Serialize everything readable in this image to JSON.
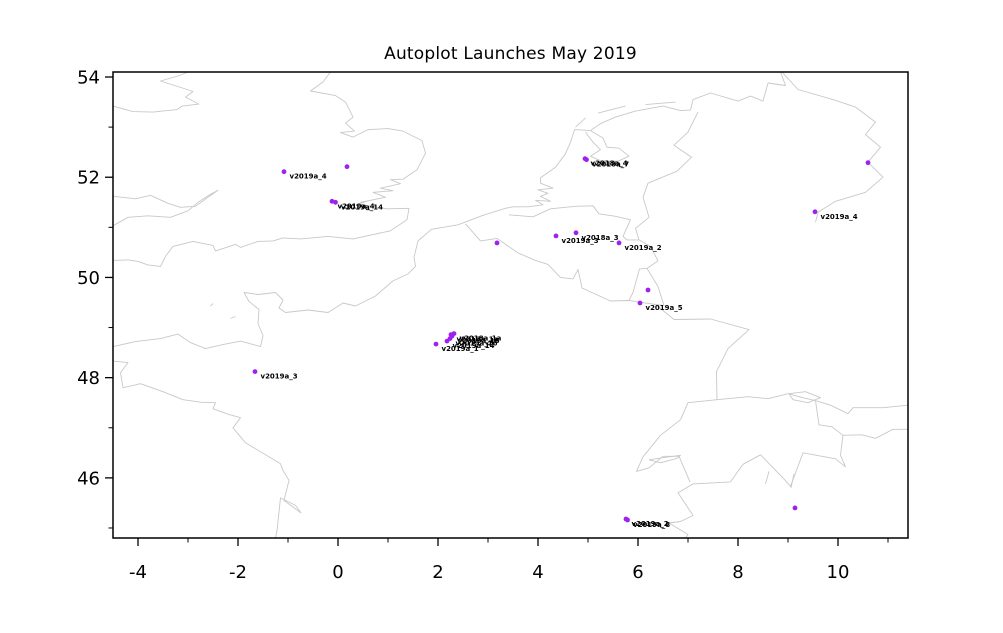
{
  "title": "Autoplot Launches May 2019",
  "style": {
    "marker_color": "#a020f0",
    "map_line_color": "#c8c8c8",
    "axis_color": "#000000",
    "background": "#ffffff",
    "label_color": "#000000"
  },
  "axes": {
    "x": {
      "min": -4.5,
      "max": 11.4,
      "major_ticks": [
        -4,
        -2,
        0,
        2,
        4,
        6,
        8,
        10
      ],
      "minor_ticks": [
        -3,
        -1,
        1,
        3,
        5,
        7,
        9,
        11
      ]
    },
    "y": {
      "min": 44.8,
      "max": 54.1,
      "major_ticks": [
        54,
        52,
        50,
        48,
        46
      ],
      "minor_ticks": [
        53,
        51,
        49,
        47,
        45
      ]
    }
  },
  "chart_data": {
    "type": "scatter",
    "title": "Autoplot Launches May 2019",
    "xlabel": "",
    "ylabel": "",
    "xlim": [
      -4.5,
      11.4
    ],
    "ylim": [
      44.8,
      54.1
    ],
    "grid": false,
    "legend": false,
    "points": [
      {
        "lon": -1.08,
        "lat": 52.11,
        "label": "v2019a_4"
      },
      {
        "lon": 0.18,
        "lat": 52.21,
        "label": null
      },
      {
        "lon": -0.12,
        "lat": 51.52,
        "label": "v2019a_4"
      },
      {
        "lon": -0.05,
        "lat": 51.5,
        "label": "v2019a_14"
      },
      {
        "lon": 4.94,
        "lat": 52.37,
        "label": "v2018a_4"
      },
      {
        "lon": 4.97,
        "lat": 52.35,
        "label": "v2018a_7"
      },
      {
        "lon": 3.18,
        "lat": 50.69,
        "label": null
      },
      {
        "lon": 4.36,
        "lat": 50.83,
        "label": "v2019a_3"
      },
      {
        "lon": 4.76,
        "lat": 50.89,
        "label": "v2018a_3"
      },
      {
        "lon": 5.62,
        "lat": 50.69,
        "label": "v2019a_2"
      },
      {
        "lon": 6.2,
        "lat": 49.75,
        "label": null
      },
      {
        "lon": 6.04,
        "lat": 49.49,
        "label": "v2019a_5"
      },
      {
        "lon": 1.96,
        "lat": 48.67,
        "label": "v2019a_1"
      },
      {
        "lon": 2.18,
        "lat": 48.73,
        "label": "v2019a_14"
      },
      {
        "lon": 2.24,
        "lat": 48.78,
        "label": "v2019a_16"
      },
      {
        "lon": 2.28,
        "lat": 48.83,
        "label": "v2019a_18"
      },
      {
        "lon": 2.26,
        "lat": 48.86,
        "label": "v2019a_1a"
      },
      {
        "lon": 2.32,
        "lat": 48.88,
        "label": "v2018a_1a"
      },
      {
        "lon": -1.66,
        "lat": 48.12,
        "label": "v2019a_3"
      },
      {
        "lon": 9.54,
        "lat": 51.31,
        "label": "v2019a_4"
      },
      {
        "lon": 10.6,
        "lat": 52.29,
        "label": null
      },
      {
        "lon": 5.76,
        "lat": 45.18,
        "label": "v2019a_2"
      },
      {
        "lon": 5.79,
        "lat": 45.16,
        "label": "v2019a_8"
      },
      {
        "lon": 9.14,
        "lat": 45.4,
        "label": null
      }
    ]
  },
  "map_paths": [
    [
      [
        -0.15,
        54.1
      ],
      [
        -0.3,
        53.9
      ],
      [
        -0.55,
        53.72
      ],
      [
        -0.05,
        53.63
      ],
      [
        0.15,
        53.5
      ],
      [
        0.3,
        53.2
      ],
      [
        0.15,
        53.08
      ],
      [
        0.33,
        52.92
      ],
      [
        0.05,
        52.89
      ],
      [
        0.3,
        52.8
      ],
      [
        0.6,
        52.95
      ],
      [
        1.0,
        52.97
      ],
      [
        1.3,
        52.92
      ],
      [
        1.68,
        52.73
      ],
      [
        1.75,
        52.48
      ],
      [
        1.58,
        52.15
      ],
      [
        1.3,
        51.96
      ],
      [
        1.05,
        51.95
      ],
      [
        1.25,
        51.87
      ],
      [
        0.85,
        51.78
      ],
      [
        1.1,
        51.73
      ],
      [
        0.7,
        51.7
      ],
      [
        0.95,
        51.6
      ],
      [
        0.45,
        51.5
      ],
      [
        0.6,
        51.53
      ],
      [
        0.4,
        51.46
      ],
      [
        0.98,
        51.37
      ],
      [
        1.42,
        51.38
      ],
      [
        1.38,
        51.15
      ],
      [
        1.05,
        50.93
      ],
      [
        0.3,
        50.77
      ],
      [
        -0.2,
        50.82
      ],
      [
        -0.75,
        50.77
      ],
      [
        -1.1,
        50.79
      ],
      [
        -1.3,
        50.73
      ],
      [
        -1.6,
        50.72
      ],
      [
        -1.95,
        50.6
      ],
      [
        -2.05,
        50.66
      ],
      [
        -2.45,
        50.53
      ],
      [
        -2.5,
        50.64
      ],
      [
        -2.9,
        50.72
      ],
      [
        -3.3,
        50.62
      ],
      [
        -3.45,
        50.42
      ],
      [
        -3.55,
        50.22
      ],
      [
        -3.8,
        50.25
      ],
      [
        -4.0,
        50.32
      ],
      [
        -4.2,
        50.35
      ],
      [
        -4.5,
        50.34
      ]
    ],
    [
      [
        -4.5,
        51.62
      ],
      [
        -4.05,
        51.57
      ],
      [
        -3.75,
        51.64
      ],
      [
        -3.4,
        51.48
      ],
      [
        -3.15,
        51.4
      ],
      [
        -2.85,
        51.42
      ],
      [
        -2.6,
        51.6
      ],
      [
        -2.4,
        51.74
      ],
      [
        -2.55,
        51.66
      ],
      [
        -2.8,
        51.5
      ],
      [
        -3.0,
        51.33
      ],
      [
        -3.35,
        51.2
      ],
      [
        -3.8,
        51.23
      ],
      [
        -4.2,
        51.2
      ],
      [
        -4.5,
        51.03
      ]
    ],
    [
      [
        -3.0,
        54.1
      ],
      [
        -3.2,
        54.02
      ],
      [
        -3.55,
        53.92
      ],
      [
        -3.05,
        53.76
      ],
      [
        -2.9,
        53.71
      ],
      [
        -3.05,
        53.6
      ],
      [
        -2.78,
        53.46
      ],
      [
        -3.12,
        53.42
      ],
      [
        -3.22,
        53.35
      ],
      [
        -3.7,
        53.3
      ],
      [
        -4.1,
        53.31
      ],
      [
        -4.5,
        53.42
      ]
    ],
    [
      [
        -4.5,
        48.62
      ],
      [
        -4.05,
        48.72
      ],
      [
        -3.55,
        48.78
      ],
      [
        -3.2,
        48.87
      ],
      [
        -2.95,
        48.7
      ],
      [
        -2.65,
        48.58
      ],
      [
        -2.3,
        48.66
      ],
      [
        -1.95,
        48.73
      ],
      [
        -1.55,
        48.62
      ],
      [
        -1.5,
        48.84
      ],
      [
        -1.6,
        49.08
      ],
      [
        -1.58,
        49.36
      ],
      [
        -1.78,
        49.52
      ],
      [
        -1.88,
        49.7
      ],
      [
        -1.6,
        49.66
      ],
      [
        -1.25,
        49.7
      ],
      [
        -1.1,
        49.55
      ],
      [
        -1.18,
        49.39
      ],
      [
        -1.05,
        49.3
      ],
      [
        -0.6,
        49.35
      ],
      [
        -0.2,
        49.3
      ],
      [
        0.1,
        49.49
      ],
      [
        0.35,
        49.43
      ],
      [
        0.75,
        49.63
      ],
      [
        1.1,
        49.93
      ],
      [
        1.4,
        50.07
      ],
      [
        1.55,
        50.22
      ],
      [
        1.52,
        50.4
      ],
      [
        1.6,
        50.73
      ],
      [
        1.87,
        50.96
      ],
      [
        2.4,
        51.05
      ],
      [
        2.9,
        51.24
      ],
      [
        3.35,
        51.38
      ],
      [
        3.5,
        51.41
      ],
      [
        3.8,
        51.41
      ],
      [
        4.1,
        51.45
      ],
      [
        3.95,
        51.54
      ],
      [
        4.25,
        51.52
      ],
      [
        4.05,
        51.62
      ],
      [
        4.2,
        51.68
      ],
      [
        4.0,
        51.75
      ],
      [
        4.3,
        51.78
      ],
      [
        4.05,
        51.88
      ],
      [
        4.05,
        51.99
      ],
      [
        4.35,
        52.2
      ],
      [
        4.55,
        52.47
      ],
      [
        4.65,
        52.7
      ],
      [
        4.73,
        52.95
      ],
      [
        5.05,
        52.93
      ],
      [
        5.25,
        53.07
      ],
      [
        5.55,
        53.2
      ],
      [
        5.95,
        53.32
      ],
      [
        6.5,
        53.42
      ],
      [
        6.85,
        53.33
      ],
      [
        7.05,
        53.34
      ],
      [
        7.1,
        53.55
      ],
      [
        7.45,
        53.68
      ],
      [
        8.0,
        53.52
      ],
      [
        8.25,
        53.62
      ],
      [
        8.5,
        53.52
      ],
      [
        8.6,
        53.88
      ],
      [
        8.95,
        53.83
      ],
      [
        8.85,
        54.1
      ]
    ],
    [
      [
        -4.5,
        48.33
      ],
      [
        -4.2,
        48.3
      ],
      [
        -4.35,
        48.1
      ],
      [
        -4.3,
        47.8
      ],
      [
        -3.95,
        47.88
      ],
      [
        -3.5,
        47.72
      ],
      [
        -3.1,
        47.56
      ],
      [
        -2.75,
        47.51
      ],
      [
        -2.45,
        47.5
      ],
      [
        -2.5,
        47.38
      ],
      [
        -2.2,
        47.27
      ],
      [
        -1.95,
        47.2
      ],
      [
        -2.1,
        47.0
      ],
      [
        -1.85,
        46.7
      ],
      [
        -1.15,
        46.28
      ],
      [
        -1.1,
        46.15
      ],
      [
        -0.98,
        45.95
      ],
      [
        -1.08,
        45.55
      ],
      [
        -0.74,
        45.3
      ],
      [
        -0.85,
        45.45
      ],
      [
        -1.15,
        45.6
      ],
      [
        -1.22,
        44.95
      ],
      [
        -1.25,
        44.8
      ]
    ],
    [
      [
        2.55,
        51.07
      ],
      [
        2.85,
        50.73
      ],
      [
        3.18,
        50.78
      ],
      [
        3.6,
        50.49
      ],
      [
        3.95,
        50.34
      ],
      [
        4.2,
        50.26
      ],
      [
        4.45,
        50.0
      ],
      [
        4.7,
        49.97
      ],
      [
        4.8,
        50.16
      ],
      [
        4.88,
        49.79
      ],
      [
        5.45,
        49.53
      ],
      [
        5.82,
        49.54
      ],
      [
        6.35,
        49.46
      ],
      [
        6.72,
        49.16
      ],
      [
        7.45,
        49.17
      ],
      [
        8.22,
        48.96
      ],
      [
        7.8,
        48.58
      ],
      [
        7.57,
        48.12
      ],
      [
        7.58,
        47.56
      ]
    ],
    [
      [
        3.42,
        51.25
      ],
      [
        3.9,
        51.21
      ],
      [
        4.25,
        51.37
      ],
      [
        4.75,
        51.42
      ],
      [
        5.1,
        51.43
      ],
      [
        5.22,
        51.27
      ],
      [
        5.55,
        51.22
      ],
      [
        5.85,
        51.15
      ],
      [
        5.7,
        50.82
      ],
      [
        5.78,
        50.75
      ],
      [
        6.02,
        50.75
      ],
      [
        6.25,
        50.62
      ],
      [
        6.4,
        50.33
      ],
      [
        6.18,
        50.18
      ],
      [
        6.4,
        49.82
      ],
      [
        6.52,
        49.44
      ],
      [
        6.35,
        49.46
      ]
    ],
    [
      [
        5.82,
        49.54
      ],
      [
        5.9,
        49.7
      ],
      [
        6.03,
        50.17
      ],
      [
        6.18,
        50.18
      ]
    ],
    [
      [
        7.2,
        53.3
      ],
      [
        7.0,
        52.9
      ],
      [
        6.72,
        52.64
      ],
      [
        7.07,
        52.4
      ],
      [
        6.78,
        52.12
      ],
      [
        6.2,
        51.88
      ],
      [
        6.1,
        51.6
      ],
      [
        6.22,
        51.2
      ],
      [
        5.95,
        50.98
      ],
      [
        6.02,
        50.75
      ]
    ],
    [
      [
        7.58,
        47.56
      ],
      [
        8.2,
        47.62
      ],
      [
        8.6,
        47.58
      ],
      [
        9.0,
        47.68
      ],
      [
        9.3,
        47.6
      ],
      [
        9.55,
        47.54
      ],
      [
        9.62,
        47.06
      ],
      [
        9.88,
        47.02
      ],
      [
        10.1,
        46.85
      ],
      [
        10.05,
        46.45
      ],
      [
        10.15,
        46.22
      ],
      [
        9.95,
        46.38
      ],
      [
        9.3,
        46.5
      ],
      [
        9.05,
        45.83
      ],
      [
        8.9,
        46.0
      ],
      [
        8.45,
        46.46
      ],
      [
        8.1,
        46.27
      ],
      [
        7.85,
        45.92
      ],
      [
        7.1,
        45.88
      ],
      [
        6.8,
        45.7
      ],
      [
        7.0,
        45.4
      ],
      [
        7.1,
        45.25
      ],
      [
        6.85,
        45.13
      ],
      [
        6.62,
        45.1
      ],
      [
        7.0,
        44.87
      ],
      [
        6.95,
        44.8
      ]
    ],
    [
      [
        7.58,
        47.56
      ],
      [
        7.0,
        47.5
      ],
      [
        6.85,
        47.16
      ],
      [
        6.45,
        46.85
      ],
      [
        6.1,
        46.42
      ],
      [
        5.97,
        46.13
      ],
      [
        6.22,
        46.2
      ],
      [
        6.5,
        46.43
      ],
      [
        6.82,
        46.43
      ],
      [
        7.04,
        45.92
      ]
    ],
    [
      [
        9.55,
        47.54
      ],
      [
        9.85,
        47.45
      ],
      [
        10.2,
        47.28
      ],
      [
        10.3,
        47.4
      ],
      [
        10.9,
        47.4
      ],
      [
        11.4,
        47.45
      ]
    ],
    [
      [
        10.1,
        46.85
      ],
      [
        10.48,
        46.86
      ],
      [
        10.75,
        46.79
      ],
      [
        11.1,
        46.97
      ],
      [
        11.4,
        46.97
      ]
    ],
    [
      [
        6.22,
        46.36
      ],
      [
        6.55,
        46.41
      ],
      [
        6.85,
        46.45
      ],
      [
        6.78,
        46.39
      ],
      [
        6.45,
        46.3
      ],
      [
        6.22,
        46.36
      ]
    ],
    [
      [
        9.02,
        47.68
      ],
      [
        9.35,
        47.72
      ],
      [
        9.65,
        47.6
      ],
      [
        9.4,
        47.5
      ],
      [
        9.1,
        47.56
      ],
      [
        9.02,
        47.68
      ]
    ],
    [
      [
        8.55,
        45.88
      ],
      [
        8.62,
        46.13
      ]
    ],
    [
      [
        9.06,
        45.8
      ],
      [
        9.12,
        46.08
      ]
    ],
    [
      [
        5.05,
        52.93
      ],
      [
        5.3,
        52.78
      ],
      [
        5.38,
        52.6
      ],
      [
        5.62,
        52.58
      ],
      [
        5.82,
        52.42
      ],
      [
        5.6,
        52.32
      ],
      [
        5.25,
        52.33
      ],
      [
        5.05,
        52.42
      ],
      [
        5.25,
        52.55
      ],
      [
        5.1,
        52.7
      ],
      [
        4.95,
        52.9
      ]
    ],
    [
      [
        4.75,
        53.0
      ],
      [
        4.95,
        53.18
      ]
    ],
    [
      [
        5.2,
        53.28
      ],
      [
        5.75,
        53.42
      ]
    ],
    [
      [
        6.15,
        53.45
      ],
      [
        6.75,
        53.5
      ]
    ],
    [
      [
        -2.55,
        49.43
      ],
      [
        -2.5,
        49.48
      ]
    ],
    [
      [
        -2.15,
        49.18
      ],
      [
        -2.05,
        49.22
      ]
    ],
    [
      [
        8.88,
        54.1
      ],
      [
        9.2,
        53.75
      ],
      [
        9.9,
        53.55
      ],
      [
        10.35,
        53.4
      ],
      [
        10.75,
        53.1
      ],
      [
        10.55,
        52.85
      ],
      [
        10.85,
        52.6
      ],
      [
        10.6,
        52.3
      ],
      [
        10.9,
        52.0
      ],
      [
        10.55,
        51.7
      ],
      [
        9.95,
        51.52
      ],
      [
        9.6,
        51.3
      ],
      [
        9.55,
        51.1
      ]
    ]
  ]
}
